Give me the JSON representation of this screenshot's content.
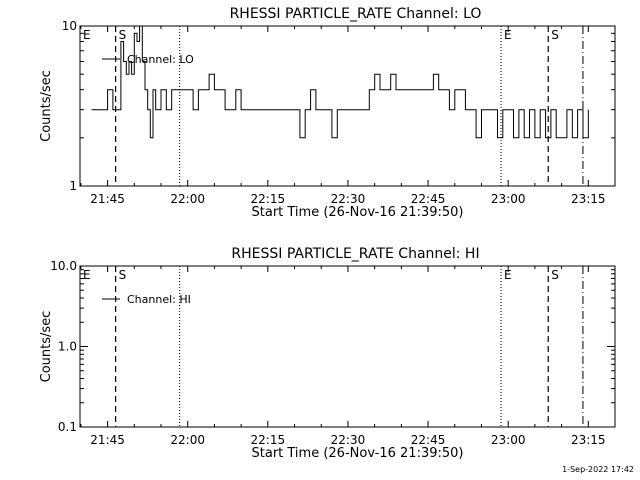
{
  "footer": {
    "timestamp": "1-Sep-2022 17:42"
  },
  "chart_data": [
    {
      "type": "line",
      "title": "RHESSI PARTICLE_RATE Channel: LO",
      "xlabel": "Start Time (26-Nov-16 21:39:50)",
      "ylabel": "Counts/sec",
      "yscale": "log",
      "xlim": [
        "21:39:50",
        "23:20:00"
      ],
      "ylim": [
        1,
        10
      ],
      "xticks": [
        "21:45",
        "22:00",
        "22:15",
        "22:30",
        "22:45",
        "23:00",
        "23:15"
      ],
      "yticks": [
        {
          "value": 1,
          "label": "1"
        },
        {
          "value": 10,
          "label": "10"
        }
      ],
      "legend": {
        "placement": "top-left",
        "entries": [
          "Channel: LO"
        ]
      },
      "markers": [
        {
          "label": "E",
          "style": "dotted",
          "time": "21:39:50"
        },
        {
          "label": "S",
          "style": "dashed",
          "time": "21:46:30"
        },
        {
          "label": "",
          "style": "dotted",
          "time": "21:58:30"
        },
        {
          "label": "E",
          "style": "dotted",
          "time": "22:58:40"
        },
        {
          "label": "S",
          "style": "dashed",
          "time": "23:07:30"
        },
        {
          "label": "",
          "style": "dashdot",
          "time": "23:14:00"
        }
      ],
      "series": [
        {
          "name": "Channel: LO",
          "times": [
            "21:42:00",
            "21:43:00",
            "21:44:00",
            "21:45:00",
            "21:46:00",
            "21:47:00",
            "21:47:30",
            "21:48:00",
            "21:48:30",
            "21:49:00",
            "21:49:30",
            "21:50:00",
            "21:50:30",
            "21:51:00",
            "21:51:30",
            "21:52:00",
            "21:52:30",
            "21:53:00",
            "21:53:30",
            "21:54:00",
            "21:55:00",
            "21:56:00",
            "21:57:00",
            "21:58:00",
            "21:59:00",
            "22:00:00",
            "22:01:00",
            "22:02:00",
            "22:03:00",
            "22:04:00",
            "22:05:00",
            "22:07:00",
            "22:08:00",
            "22:09:00",
            "22:10:00",
            "22:11:00",
            "22:12:00",
            "22:13:00",
            "22:15:00",
            "22:17:00",
            "22:19:00",
            "22:21:00",
            "22:22:00",
            "22:23:00",
            "22:24:00",
            "22:25:00",
            "22:26:00",
            "22:27:00",
            "22:28:00",
            "22:29:00",
            "22:30:00",
            "22:31:00",
            "22:32:00",
            "22:33:00",
            "22:34:00",
            "22:35:00",
            "22:36:00",
            "22:37:00",
            "22:38:00",
            "22:39:00",
            "22:40:00",
            "22:41:00",
            "22:42:00",
            "22:43:00",
            "22:44:00",
            "22:45:00",
            "22:46:00",
            "22:47:00",
            "22:48:00",
            "22:49:00",
            "22:50:00",
            "22:51:00",
            "22:52:00",
            "22:53:00",
            "22:54:00",
            "22:55:00",
            "22:56:00",
            "22:57:00",
            "22:58:00",
            "22:59:00",
            "23:00:00",
            "23:01:00",
            "23:02:00",
            "23:03:00",
            "23:04:00",
            "23:05:00",
            "23:06:00",
            "23:07:00",
            "23:08:00",
            "23:09:00",
            "23:10:00",
            "23:11:00",
            "23:12:00",
            "23:13:00",
            "23:14:00",
            "23:15:00"
          ],
          "values": [
            3,
            3,
            3,
            4,
            3,
            3,
            8,
            6,
            5,
            6,
            5,
            9,
            8,
            10,
            6,
            4,
            3,
            2,
            4,
            3,
            4,
            3,
            4,
            4,
            4,
            4,
            3,
            4,
            4,
            5,
            4,
            3,
            3,
            4,
            3,
            3,
            3,
            3,
            3,
            3,
            3,
            2,
            3,
            4,
            3,
            3,
            3,
            2,
            3,
            3,
            3,
            3,
            3,
            3,
            4,
            5,
            4,
            4,
            5,
            4,
            4,
            4,
            4,
            4,
            4,
            4,
            5,
            4,
            4,
            3,
            4,
            4,
            3,
            3,
            2,
            3,
            3,
            3,
            2,
            3,
            3,
            2,
            3,
            2,
            3,
            2,
            3,
            2,
            3,
            2,
            2,
            3,
            2,
            3,
            2,
            3
          ]
        }
      ]
    },
    {
      "type": "line",
      "title": "RHESSI PARTICLE_RATE Channel: HI",
      "xlabel": "Start Time (26-Nov-16 21:39:50)",
      "ylabel": "Counts/sec",
      "yscale": "log",
      "xlim": [
        "21:39:50",
        "23:20:00"
      ],
      "ylim": [
        0.1,
        10
      ],
      "xticks": [
        "21:45",
        "22:00",
        "22:15",
        "22:30",
        "22:45",
        "23:00",
        "23:15"
      ],
      "yticks": [
        {
          "value": 0.1,
          "label": "0.1"
        },
        {
          "value": 1,
          "label": "1.0"
        },
        {
          "value": 10,
          "label": "10.0"
        }
      ],
      "legend": {
        "placement": "top-left",
        "entries": [
          "Channel: HI"
        ]
      },
      "markers": [
        {
          "label": "E",
          "style": "dotted",
          "time": "21:39:50"
        },
        {
          "label": "S",
          "style": "dashed",
          "time": "21:46:30"
        },
        {
          "label": "",
          "style": "dotted",
          "time": "21:58:30"
        },
        {
          "label": "E",
          "style": "dotted",
          "time": "22:58:40"
        },
        {
          "label": "S",
          "style": "dashed",
          "time": "23:07:30"
        },
        {
          "label": "",
          "style": "dashdot",
          "time": "23:14:00"
        }
      ],
      "series": [
        {
          "name": "Channel: HI",
          "times": [],
          "values": []
        }
      ]
    }
  ]
}
